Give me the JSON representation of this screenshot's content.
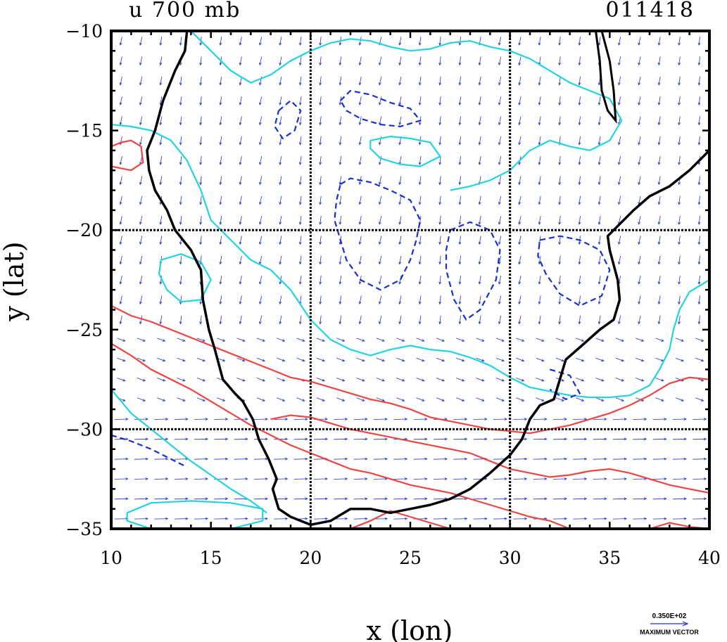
{
  "header": {
    "title": "u 700 mb",
    "time_code": "011418"
  },
  "axes": {
    "xlabel": "x (lon)",
    "ylabel": "y (lat)",
    "xlim": [
      10,
      40
    ],
    "ylim": [
      -35,
      -10
    ],
    "x_ticks": [
      "10",
      "15",
      "20",
      "25",
      "30",
      "35",
      "40"
    ],
    "y_ticks": [
      "-10",
      "-15",
      "-20",
      "-25",
      "-30",
      "-35"
    ],
    "grid_lon": [
      20,
      30
    ],
    "grid_lat": [
      -20,
      -30
    ]
  },
  "legend": {
    "max_vector_value": "0.350E+02",
    "max_vector_label": "MAXIMUM VECTOR"
  },
  "colors": {
    "coast": "#000000",
    "positive_contour": "#ef4444",
    "zero_contour": "#22d3e0",
    "negative_contour": "#1a2fd0",
    "vectors": "#2233cc"
  },
  "map_data": {
    "coastline": [
      [
        13.8,
        -10
      ],
      [
        13.7,
        -11
      ],
      [
        13.2,
        -12
      ],
      [
        12.6,
        -13.5
      ],
      [
        12.2,
        -15
      ],
      [
        11.8,
        -16
      ],
      [
        11.9,
        -17
      ],
      [
        12.2,
        -18
      ],
      [
        12.8,
        -19
      ],
      [
        13.2,
        -20
      ],
      [
        14,
        -21
      ],
      [
        14.5,
        -22
      ],
      [
        14.6,
        -23.5
      ],
      [
        14.9,
        -25
      ],
      [
        15.2,
        -26
      ],
      [
        15.6,
        -27.5
      ],
      [
        16.2,
        -28.2
      ],
      [
        16.6,
        -28.6
      ],
      [
        17.1,
        -29.5
      ],
      [
        17.4,
        -30.5
      ],
      [
        17.9,
        -31.5
      ],
      [
        18.3,
        -32.5
      ],
      [
        18.1,
        -33
      ],
      [
        18.4,
        -34
      ],
      [
        19,
        -34.4
      ],
      [
        20,
        -34.8
      ],
      [
        21,
        -34.6
      ],
      [
        22,
        -34
      ],
      [
        23,
        -34
      ],
      [
        24,
        -34.2
      ],
      [
        25,
        -34
      ],
      [
        26,
        -33.8
      ],
      [
        27,
        -33.5
      ],
      [
        28,
        -33
      ],
      [
        29,
        -32.2
      ],
      [
        30,
        -31.3
      ],
      [
        30.6,
        -30.5
      ],
      [
        31,
        -29.5
      ],
      [
        31.5,
        -28.8
      ],
      [
        32.2,
        -28.5
      ],
      [
        32.5,
        -27.5
      ],
      [
        32.8,
        -26.5
      ],
      [
        33.6,
        -25.8
      ],
      [
        34.5,
        -25
      ],
      [
        35.2,
        -24.5
      ],
      [
        35.5,
        -23.5
      ],
      [
        35.4,
        -22.5
      ],
      [
        35,
        -21
      ],
      [
        34.9,
        -20.3
      ],
      [
        35.5,
        -19.7
      ],
      [
        36.2,
        -19
      ],
      [
        37,
        -18.3
      ],
      [
        38,
        -17.8
      ],
      [
        39,
        -17
      ],
      [
        40,
        -16
      ]
    ],
    "lake": [
      [
        34.3,
        -10
      ],
      [
        34.5,
        -11.5
      ],
      [
        34.6,
        -13
      ],
      [
        34.9,
        -14
      ],
      [
        35.3,
        -14.5
      ],
      [
        35.2,
        -13
      ],
      [
        35,
        -11.5
      ],
      [
        34.6,
        -10
      ]
    ],
    "contours_positive": [
      [
        [
          10,
          -23.8
        ],
        [
          11,
          -24.3
        ],
        [
          12,
          -24.6
        ],
        [
          13,
          -25
        ],
        [
          14,
          -25.4
        ],
        [
          15,
          -25.8
        ],
        [
          16,
          -26.2
        ],
        [
          17,
          -26.6
        ],
        [
          18,
          -27
        ],
        [
          19,
          -27.4
        ],
        [
          20,
          -27.6
        ],
        [
          21,
          -27.9
        ],
        [
          22,
          -28.2
        ],
        [
          23,
          -28.5
        ],
        [
          24,
          -28.7
        ],
        [
          25,
          -29
        ],
        [
          26,
          -29.4
        ],
        [
          27,
          -29.6
        ],
        [
          28,
          -29.8
        ],
        [
          29,
          -30
        ],
        [
          30,
          -30.1
        ],
        [
          31,
          -30.2
        ],
        [
          32,
          -30
        ],
        [
          33,
          -29.8
        ],
        [
          34,
          -29.5
        ],
        [
          35,
          -29.2
        ],
        [
          36,
          -28.8
        ],
        [
          37,
          -28.3
        ],
        [
          38,
          -27.7
        ],
        [
          39,
          -27.4
        ],
        [
          40,
          -27.5
        ]
      ],
      [
        [
          10,
          -25.7
        ],
        [
          11,
          -26.3
        ],
        [
          12,
          -27
        ],
        [
          13,
          -27.5
        ],
        [
          14,
          -28
        ],
        [
          15,
          -28.6
        ],
        [
          16,
          -29.2
        ],
        [
          17,
          -29.8
        ],
        [
          18,
          -30.3
        ],
        [
          19,
          -30.8
        ],
        [
          20,
          -31.2
        ],
        [
          21,
          -31.6
        ],
        [
          22,
          -32
        ],
        [
          23,
          -32.2
        ],
        [
          24,
          -32.5
        ],
        [
          25,
          -32.8
        ],
        [
          26,
          -33
        ],
        [
          27,
          -33.2
        ],
        [
          28,
          -33.5
        ],
        [
          29,
          -33.8
        ],
        [
          30,
          -34.1
        ],
        [
          31,
          -34.4
        ],
        [
          32,
          -34.6
        ],
        [
          33,
          -35
        ]
      ],
      [
        [
          18,
          -29.5
        ],
        [
          19,
          -29.3
        ],
        [
          20,
          -29.4
        ],
        [
          21,
          -29.7
        ],
        [
          22,
          -30
        ],
        [
          23,
          -30.2
        ],
        [
          24,
          -30.4
        ],
        [
          25,
          -30.6
        ],
        [
          26,
          -30.8
        ],
        [
          27,
          -31
        ],
        [
          28,
          -31.2
        ],
        [
          29,
          -31.6
        ],
        [
          30,
          -32
        ],
        [
          31,
          -32.2
        ],
        [
          32,
          -32.4
        ],
        [
          33,
          -32.3
        ],
        [
          34,
          -32.1
        ],
        [
          35,
          -32
        ],
        [
          36,
          -32.2
        ],
        [
          37,
          -32.5
        ],
        [
          38,
          -32.8
        ],
        [
          39,
          -33
        ],
        [
          40,
          -33.2
        ]
      ],
      [
        [
          10,
          -16.8
        ],
        [
          11,
          -17
        ],
        [
          11.6,
          -16.6
        ],
        [
          11.5,
          -15.8
        ],
        [
          11,
          -15.5
        ],
        [
          10.5,
          -15.6
        ],
        [
          10,
          -15.8
        ]
      ],
      [
        [
          22,
          -35
        ],
        [
          23,
          -34.6
        ],
        [
          24,
          -34.1
        ],
        [
          25,
          -34.4
        ],
        [
          26,
          -34.7
        ],
        [
          27,
          -35
        ]
      ],
      [
        [
          37,
          -35
        ],
        [
          38,
          -34.7
        ],
        [
          39,
          -34.9
        ],
        [
          40,
          -35
        ]
      ]
    ],
    "contours_zero": [
      [
        [
          10,
          -14.7
        ],
        [
          11,
          -14.8
        ],
        [
          12,
          -15
        ],
        [
          13,
          -15.5
        ],
        [
          13.8,
          -16.5
        ],
        [
          14.5,
          -18
        ],
        [
          15,
          -19.5
        ],
        [
          16,
          -20.5
        ],
        [
          17,
          -21.5
        ],
        [
          18,
          -22
        ],
        [
          19,
          -23
        ],
        [
          20,
          -24.5
        ],
        [
          21,
          -25.5
        ],
        [
          22,
          -26
        ],
        [
          23,
          -26.3
        ],
        [
          24,
          -26
        ],
        [
          25,
          -25.8
        ],
        [
          26,
          -26
        ],
        [
          27,
          -26.1
        ],
        [
          28,
          -26.4
        ],
        [
          29,
          -26.8
        ],
        [
          30,
          -27.4
        ],
        [
          31,
          -27.9
        ],
        [
          32,
          -28.1
        ],
        [
          33,
          -28.3
        ],
        [
          34,
          -28.4
        ],
        [
          35,
          -28.4
        ],
        [
          36,
          -28.3
        ],
        [
          37,
          -27.8
        ],
        [
          37.5,
          -27
        ],
        [
          38,
          -26
        ],
        [
          38.2,
          -25
        ],
        [
          38.5,
          -24
        ],
        [
          39,
          -23.1
        ],
        [
          40,
          -22.5
        ]
      ],
      [
        [
          14,
          -10
        ],
        [
          15,
          -11
        ],
        [
          16,
          -12
        ],
        [
          17,
          -12.6
        ],
        [
          18,
          -12.2
        ],
        [
          19,
          -11.5
        ],
        [
          20,
          -11
        ],
        [
          21,
          -10.6
        ],
        [
          22,
          -10.4
        ],
        [
          23,
          -10.5
        ],
        [
          24,
          -10.8
        ],
        [
          25,
          -11
        ],
        [
          26,
          -10.9
        ],
        [
          27,
          -10.6
        ],
        [
          28,
          -10.5
        ],
        [
          29,
          -10.8
        ],
        [
          30,
          -11
        ],
        [
          31,
          -11.4
        ],
        [
          32,
          -12
        ],
        [
          33,
          -12.6
        ],
        [
          34,
          -13
        ],
        [
          35,
          -13.4
        ],
        [
          35.6,
          -14.5
        ],
        [
          35,
          -15.5
        ],
        [
          34,
          -16
        ],
        [
          33,
          -15.8
        ],
        [
          32,
          -15.5
        ],
        [
          31,
          -16
        ],
        [
          30,
          -17
        ],
        [
          29,
          -17.5
        ],
        [
          28,
          -17.8
        ],
        [
          27,
          -18
        ]
      ],
      [
        [
          23,
          -15.5
        ],
        [
          24,
          -15.3
        ],
        [
          25,
          -15.4
        ],
        [
          26,
          -15.6
        ],
        [
          26.5,
          -16.3
        ],
        [
          25.5,
          -16.8
        ],
        [
          24.5,
          -16.7
        ],
        [
          23.5,
          -16.4
        ],
        [
          23,
          -15.9
        ],
        [
          23,
          -15.5
        ]
      ],
      [
        [
          10,
          -28
        ],
        [
          11,
          -29.2
        ],
        [
          12,
          -30
        ],
        [
          13,
          -30.8
        ],
        [
          14,
          -31.6
        ],
        [
          15,
          -32.3
        ],
        [
          16,
          -33
        ],
        [
          17,
          -33.6
        ],
        [
          17.8,
          -34.2
        ]
      ],
      [
        [
          10.8,
          -34.2
        ],
        [
          12,
          -33.7
        ],
        [
          14,
          -33.6
        ],
        [
          16,
          -33.7
        ],
        [
          17.6,
          -34
        ],
        [
          17.6,
          -34.6
        ],
        [
          16,
          -35
        ],
        [
          12,
          -35
        ],
        [
          10.8,
          -34.6
        ],
        [
          10.8,
          -34.2
        ]
      ],
      [
        [
          12.5,
          -21.5
        ],
        [
          13.5,
          -21.2
        ],
        [
          14.5,
          -21.6
        ],
        [
          15,
          -22.5
        ],
        [
          14.5,
          -23.5
        ],
        [
          13.5,
          -23.6
        ],
        [
          12.8,
          -23
        ],
        [
          12.4,
          -22.2
        ],
        [
          12.5,
          -21.5
        ]
      ]
    ],
    "contours_negative": [
      [
        [
          21.5,
          -17.7
        ],
        [
          22,
          -17.4
        ],
        [
          23,
          -17.6
        ],
        [
          24,
          -18
        ],
        [
          25,
          -18.5
        ],
        [
          25.5,
          -19.5
        ],
        [
          25.3,
          -20.5
        ],
        [
          25,
          -21.5
        ],
        [
          24.5,
          -22.5
        ],
        [
          23.5,
          -23
        ],
        [
          22.5,
          -22.5
        ],
        [
          21.8,
          -21.5
        ],
        [
          21.5,
          -20.5
        ],
        [
          21.2,
          -19.5
        ],
        [
          21.3,
          -18.5
        ],
        [
          21.5,
          -17.7
        ]
      ],
      [
        [
          21.5,
          -13.5
        ],
        [
          22,
          -13
        ],
        [
          23,
          -13.2
        ],
        [
          24,
          -13.6
        ],
        [
          25,
          -13.9
        ],
        [
          25.5,
          -14.5
        ],
        [
          24.5,
          -14.8
        ],
        [
          23.5,
          -14.7
        ],
        [
          22.5,
          -14.4
        ],
        [
          21.8,
          -14
        ],
        [
          21.5,
          -13.5
        ]
      ],
      [
        [
          18.4,
          -14
        ],
        [
          19,
          -13.5
        ],
        [
          19.5,
          -14
        ],
        [
          19.2,
          -15
        ],
        [
          18.6,
          -15.4
        ],
        [
          18.2,
          -14.8
        ],
        [
          18.4,
          -14
        ]
      ],
      [
        [
          27,
          -20
        ],
        [
          28,
          -19.6
        ],
        [
          29,
          -20
        ],
        [
          29.5,
          -21
        ],
        [
          29.3,
          -22.5
        ],
        [
          28.5,
          -24
        ],
        [
          27.8,
          -24.5
        ],
        [
          27.2,
          -23.5
        ],
        [
          26.8,
          -22
        ],
        [
          26.8,
          -21
        ],
        [
          27,
          -20
        ]
      ],
      [
        [
          31.5,
          -20.5
        ],
        [
          32.5,
          -20.3
        ],
        [
          33.5,
          -20.5
        ],
        [
          34.5,
          -21
        ],
        [
          35,
          -22
        ],
        [
          34.6,
          -23.3
        ],
        [
          33.5,
          -23.8
        ],
        [
          32.5,
          -23.2
        ],
        [
          31.8,
          -22.2
        ],
        [
          31.4,
          -21.3
        ],
        [
          31.5,
          -20.5
        ]
      ],
      [
        [
          10,
          -30.3
        ],
        [
          11,
          -30.6
        ],
        [
          12,
          -31
        ],
        [
          13,
          -31.5
        ],
        [
          13.8,
          -31.9
        ]
      ],
      [
        [
          32,
          -27
        ],
        [
          33,
          -27.3
        ],
        [
          33.5,
          -28.2
        ],
        [
          32.8,
          -28.5
        ],
        [
          32,
          -28
        ]
      ]
    ]
  }
}
